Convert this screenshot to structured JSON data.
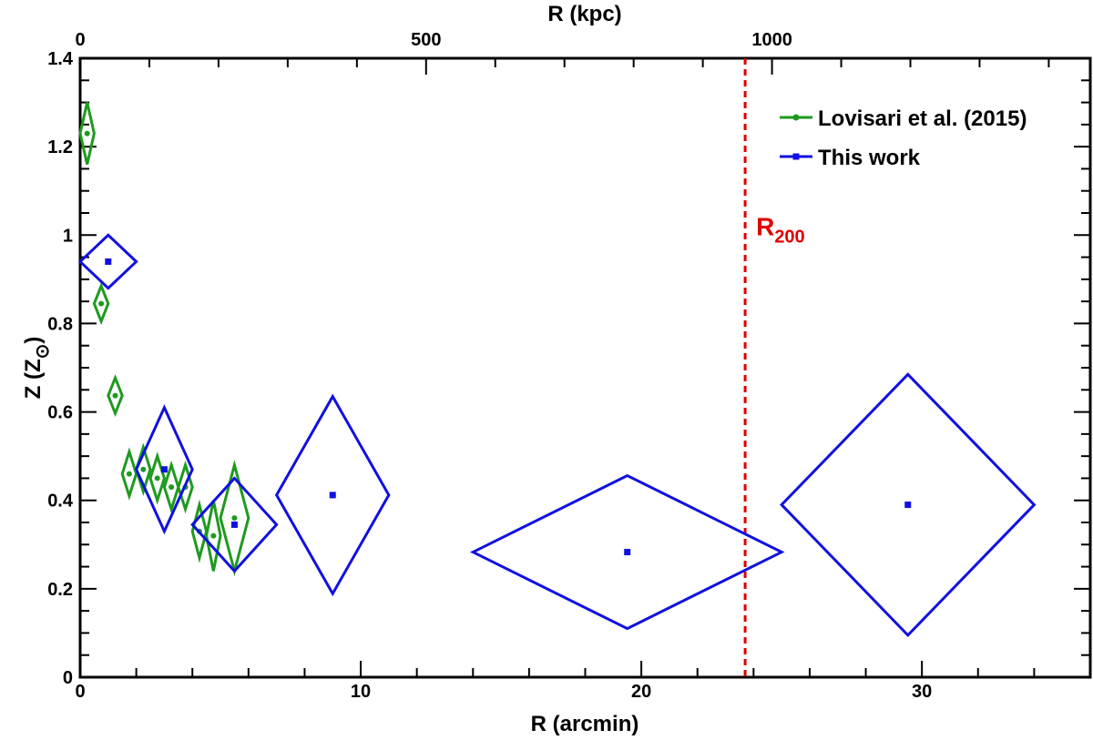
{
  "chart_data": {
    "type": "scatter",
    "title": "",
    "xlabel": "R (arcmin)",
    "ylabel_main": "Z (Z",
    "ylabel_sub": "⊙",
    "ylabel_close": ")",
    "top_xlabel": "R (kpc)",
    "xlim": [
      0,
      36
    ],
    "ylim": [
      0,
      1.4
    ],
    "top_xlim": [
      0,
      1460
    ],
    "x_ticks": [
      0,
      10,
      20,
      30
    ],
    "x_tick_labels": [
      "0",
      "10",
      "20",
      "30"
    ],
    "x_minor_step": 2,
    "y_ticks": [
      0,
      0.2,
      0.4,
      0.6,
      0.8,
      1,
      1.2,
      1.4
    ],
    "y_tick_labels": [
      "0",
      "0.2",
      "0.4",
      "0.6",
      "0.8",
      "1",
      "1.2",
      "1.4"
    ],
    "y_minor_step": 0.05,
    "top_ticks": [
      0,
      500,
      1000
    ],
    "top_tick_labels": [
      "0",
      "500",
      "1000"
    ],
    "top_minor_step": 100,
    "legend_position": "top-right",
    "series": [
      {
        "name": "Lovisari et al. (2015)",
        "color": "#1e9a1e",
        "marker": "circle",
        "points": [
          {
            "x": 0.25,
            "y": 1.23,
            "xerr": 0.25,
            "yerr": 0.07
          },
          {
            "x": 0.75,
            "y": 0.845,
            "xerr": 0.25,
            "yerr": 0.04
          },
          {
            "x": 1.25,
            "y": 0.637,
            "xerr": 0.25,
            "yerr": 0.04
          },
          {
            "x": 1.75,
            "y": 0.46,
            "xerr": 0.25,
            "yerr": 0.05
          },
          {
            "x": 2.25,
            "y": 0.47,
            "xerr": 0.25,
            "yerr": 0.05
          },
          {
            "x": 2.75,
            "y": 0.45,
            "xerr": 0.25,
            "yerr": 0.05
          },
          {
            "x": 3.25,
            "y": 0.43,
            "xerr": 0.25,
            "yerr": 0.05
          },
          {
            "x": 3.75,
            "y": 0.43,
            "xerr": 0.25,
            "yerr": 0.05
          },
          {
            "x": 4.25,
            "y": 0.33,
            "xerr": 0.25,
            "yerr": 0.06
          },
          {
            "x": 4.75,
            "y": 0.32,
            "xerr": 0.25,
            "yerr": 0.08
          },
          {
            "x": 5.5,
            "y": 0.36,
            "xerr": 0.5,
            "yerr": 0.12
          }
        ]
      },
      {
        "name": "This work",
        "color": "#1010e0",
        "marker": "square",
        "points": [
          {
            "x": 1.0,
            "y": 0.94,
            "xerr": 1.0,
            "yerr": 0.06
          },
          {
            "x": 3.0,
            "y": 0.47,
            "xerr": 1.0,
            "yerr": 0.14
          },
          {
            "x": 5.5,
            "y": 0.345,
            "xerr": 1.5,
            "yerr": 0.105
          },
          {
            "x": 9.0,
            "y": 0.412,
            "xerr": 2.0,
            "yerr": 0.223
          },
          {
            "x": 19.5,
            "y": 0.283,
            "xerr": 5.5,
            "yerr": 0.173
          },
          {
            "x": 29.5,
            "y": 0.39,
            "xerr": 4.5,
            "yerr": 0.295
          }
        ]
      }
    ],
    "annotations": [
      {
        "type": "vline",
        "x": 23.7,
        "color": "#e00000",
        "label_main": "R",
        "label_sub": "200",
        "label_y": 1.0
      }
    ]
  }
}
